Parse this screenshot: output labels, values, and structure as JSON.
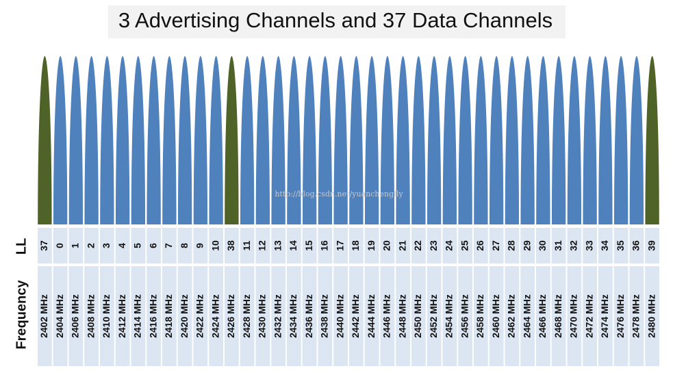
{
  "title": "3 Advertising Channels and 37 Data Channels",
  "watermark": "http://blog.csdn.net/yuanchengfly",
  "row_labels": [
    "LL",
    "Frequency"
  ],
  "channels": [
    {
      "ll": 37,
      "frequency": "2402 MHz",
      "color": "#4f6228"
    },
    {
      "ll": 0,
      "frequency": "2404 MHz",
      "color": "#4f81bd"
    },
    {
      "ll": 1,
      "frequency": "2406 MHz",
      "color": "#4f81bd"
    },
    {
      "ll": 2,
      "frequency": "2408 MHz",
      "color": "#4f81bd"
    },
    {
      "ll": 3,
      "frequency": "2410 MHz",
      "color": "#4f81bd"
    },
    {
      "ll": 4,
      "frequency": "2412 MHz",
      "color": "#4f81bd"
    },
    {
      "ll": 5,
      "frequency": "2414 MHz",
      "color": "#4f81bd"
    },
    {
      "ll": 6,
      "frequency": "2416 MHz",
      "color": "#4f81bd"
    },
    {
      "ll": 7,
      "frequency": "2418 MHz",
      "color": "#4f81bd"
    },
    {
      "ll": 8,
      "frequency": "2420 MHz",
      "color": "#4f81bd"
    },
    {
      "ll": 9,
      "frequency": "2422 MHz",
      "color": "#4f81bd"
    },
    {
      "ll": 10,
      "frequency": "2424 MHz",
      "color": "#4f81bd"
    },
    {
      "ll": 38,
      "frequency": "2426 MHz",
      "color": "#4f6228"
    },
    {
      "ll": 11,
      "frequency": "2428 MHz",
      "color": "#4f81bd"
    },
    {
      "ll": 12,
      "frequency": "2430 MHz",
      "color": "#4f81bd"
    },
    {
      "ll": 13,
      "frequency": "2432 MHz",
      "color": "#4f81bd"
    },
    {
      "ll": 14,
      "frequency": "2434 MHz",
      "color": "#4f81bd"
    },
    {
      "ll": 15,
      "frequency": "2436 MHz",
      "color": "#4f81bd"
    },
    {
      "ll": 16,
      "frequency": "2438 MHz",
      "color": "#4f81bd"
    },
    {
      "ll": 17,
      "frequency": "2440 MHz",
      "color": "#4f81bd"
    },
    {
      "ll": 18,
      "frequency": "2442 MHz",
      "color": "#4f81bd"
    },
    {
      "ll": 19,
      "frequency": "2444 MHz",
      "color": "#4f81bd"
    },
    {
      "ll": 20,
      "frequency": "2446 MHz",
      "color": "#4f81bd"
    },
    {
      "ll": 21,
      "frequency": "2448 MHz",
      "color": "#4f81bd"
    },
    {
      "ll": 22,
      "frequency": "2450 MHz",
      "color": "#4f81bd"
    },
    {
      "ll": 23,
      "frequency": "2452 MHz",
      "color": "#4f81bd"
    },
    {
      "ll": 24,
      "frequency": "2454 MHz",
      "color": "#4f81bd"
    },
    {
      "ll": 25,
      "frequency": "2456 MHz",
      "color": "#4f81bd"
    },
    {
      "ll": 26,
      "frequency": "2458 MHz",
      "color": "#4f81bd"
    },
    {
      "ll": 27,
      "frequency": "2460 MHz",
      "color": "#4f81bd"
    },
    {
      "ll": 28,
      "frequency": "2462 MHz",
      "color": "#4f81bd"
    },
    {
      "ll": 29,
      "frequency": "2464 MHz",
      "color": "#4f81bd"
    },
    {
      "ll": 30,
      "frequency": "2466 MHz",
      "color": "#4f81bd"
    },
    {
      "ll": 31,
      "frequency": "2468 MHz",
      "color": "#4f81bd"
    },
    {
      "ll": 32,
      "frequency": "2470 MHz",
      "color": "#4f81bd"
    },
    {
      "ll": 33,
      "frequency": "2472 MHz",
      "color": "#4f81bd"
    },
    {
      "ll": 34,
      "frequency": "2474 MHz",
      "color": "#4f81bd"
    },
    {
      "ll": 35,
      "frequency": "2476 MHz",
      "color": "#4f81bd"
    },
    {
      "ll": 36,
      "frequency": "2478 MHz",
      "color": "#4f81bd"
    },
    {
      "ll": 39,
      "frequency": "2480 MHz",
      "color": "#4f6228"
    }
  ]
}
